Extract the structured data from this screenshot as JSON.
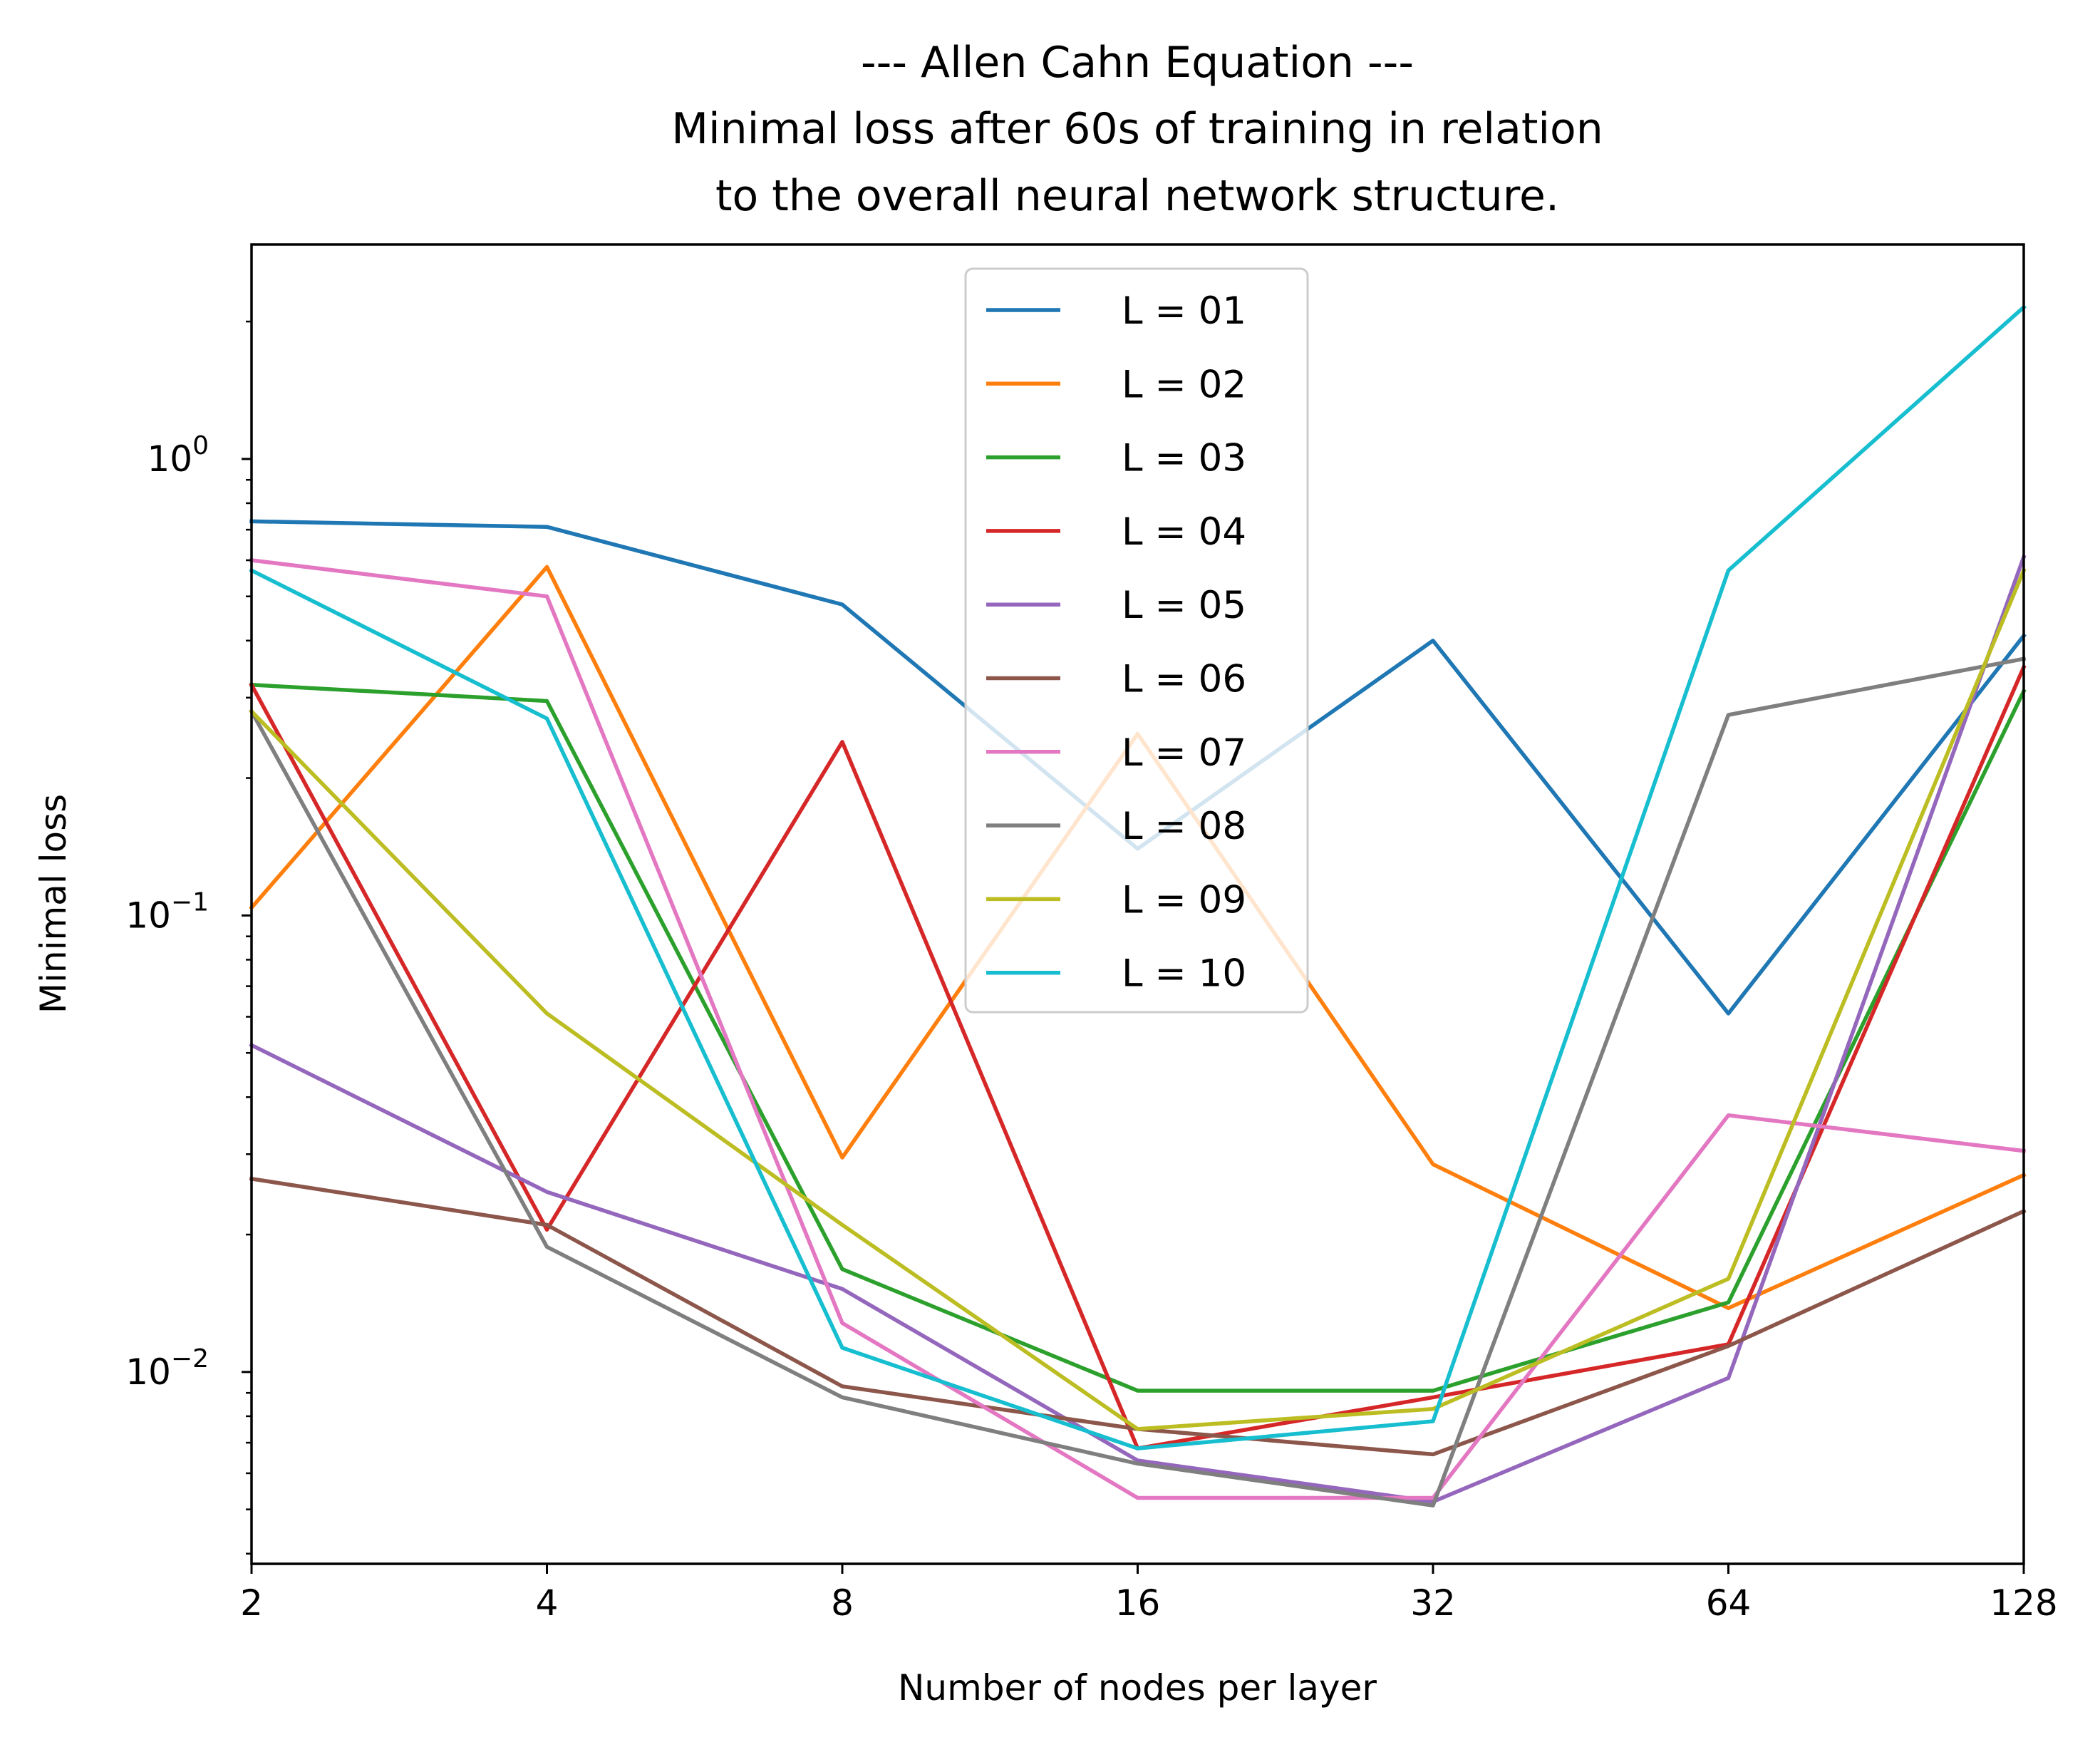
{
  "chart_data": {
    "type": "line",
    "title_lines": [
      "--- Allen Cahn Equation ---",
      "Minimal loss after 60s of training in relation",
      "to the overall neural network structure."
    ],
    "xlabel": "Number of nodes per layer",
    "ylabel": "Minimal loss",
    "x_scale": "log2",
    "y_scale": "log",
    "x": [
      2,
      4,
      8,
      16,
      32,
      64,
      128
    ],
    "x_tick_labels": [
      "2",
      "4",
      "8",
      "16",
      "32",
      "64",
      "128"
    ],
    "y_ticks": [
      {
        "value": 1,
        "base": "10",
        "exp": "0"
      },
      {
        "value": 0.1,
        "base": "10",
        "exp": "−1"
      },
      {
        "value": 0.01,
        "base": "10",
        "exp": "−2"
      }
    ],
    "xlim": [
      2,
      128
    ],
    "ylim": [
      0.0038,
      2.95
    ],
    "grid": false,
    "legend_position": "upper-center",
    "series": [
      {
        "name": "L = 01",
        "color": "#1f77b4",
        "values": [
          0.73,
          0.71,
          0.48,
          0.14,
          0.4,
          0.061,
          0.41
        ]
      },
      {
        "name": "L = 02",
        "color": "#ff7f0e",
        "values": [
          0.104,
          0.58,
          0.0295,
          0.25,
          0.0285,
          0.0138,
          0.027
        ]
      },
      {
        "name": "L = 03",
        "color": "#2ca02c",
        "values": [
          0.32,
          0.295,
          0.0168,
          0.0091,
          0.0091,
          0.0142,
          0.31
        ]
      },
      {
        "name": "L = 04",
        "color": "#d62728",
        "values": [
          0.32,
          0.0205,
          0.24,
          0.0068,
          0.0088,
          0.0115,
          0.35
        ]
      },
      {
        "name": "L = 05",
        "color": "#9467bd",
        "values": [
          0.052,
          0.0248,
          0.0152,
          0.0064,
          0.0052,
          0.0097,
          0.61
        ]
      },
      {
        "name": "L = 06",
        "color": "#8c564b",
        "values": [
          0.0265,
          0.021,
          0.0093,
          0.0075,
          0.0066,
          0.0114,
          0.0225
        ]
      },
      {
        "name": "L = 07",
        "color": "#e377c2",
        "values": [
          0.6,
          0.5,
          0.0128,
          0.0053,
          0.0053,
          0.0365,
          0.0305
        ]
      },
      {
        "name": "L = 08",
        "color": "#7f7f7f",
        "values": [
          0.28,
          0.0188,
          0.0088,
          0.0063,
          0.0051,
          0.275,
          0.365
        ]
      },
      {
        "name": "L = 09",
        "color": "#bcbd22",
        "values": [
          0.28,
          0.061,
          0.021,
          0.0075,
          0.0083,
          0.016,
          0.57
        ]
      },
      {
        "name": "L = 10",
        "color": "#17becf",
        "values": [
          0.57,
          0.27,
          0.0113,
          0.0068,
          0.0078,
          0.57,
          2.15
        ]
      }
    ]
  }
}
